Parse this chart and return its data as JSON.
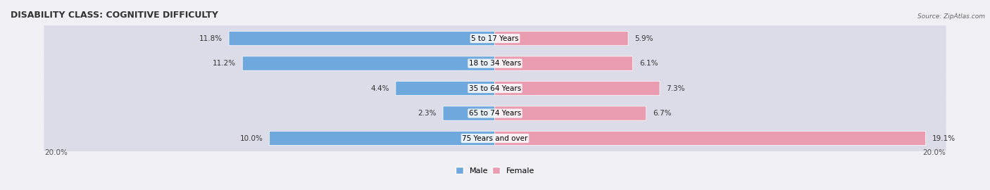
{
  "title": "DISABILITY CLASS: COGNITIVE DIFFICULTY",
  "source_text": "Source: ZipAtlas.com",
  "categories": [
    "5 to 17 Years",
    "18 to 34 Years",
    "35 to 64 Years",
    "65 to 74 Years",
    "75 Years and over"
  ],
  "male_values": [
    11.8,
    11.2,
    4.4,
    2.3,
    10.0
  ],
  "female_values": [
    5.9,
    6.1,
    7.3,
    6.7,
    19.1
  ],
  "max_val": 20.0,
  "male_color": "#6fa8dc",
  "female_color": "#ea9db0",
  "male_color_dark": "#4a86c8",
  "female_color_dark": "#e06080",
  "bg_row_color": "#e8e8ee",
  "bar_height": 0.55,
  "title_fontsize": 9,
  "label_fontsize": 7.5,
  "axis_label_fontsize": 7.5,
  "legend_fontsize": 8
}
